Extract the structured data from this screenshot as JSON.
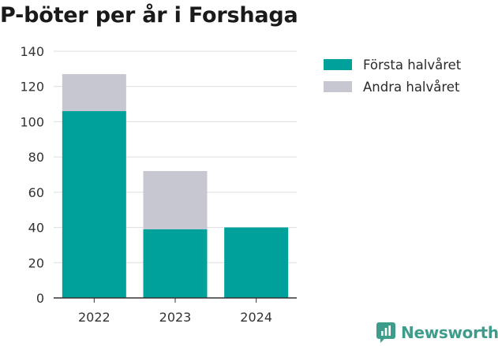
{
  "chart_data": {
    "type": "bar",
    "stacked": true,
    "title": "P-böter per år i Forshaga",
    "categories": [
      "2022",
      "2023",
      "2024"
    ],
    "series": [
      {
        "name": "Första halvåret",
        "color": "#00a19a",
        "values": [
          106,
          39,
          40
        ]
      },
      {
        "name": "Andra halvåret",
        "color": "#c7c7d1",
        "values": [
          21,
          33,
          0
        ]
      }
    ],
    "y_ticks": [
      "0",
      "20",
      "40",
      "60",
      "80",
      "100",
      "120",
      "140"
    ],
    "ylim": [
      0,
      140
    ],
    "grid": true,
    "legend_position": "top-right"
  },
  "brand": {
    "label": "Newsworthy",
    "color": "#3e9c8a",
    "icon": "newsworthy-logo-icon"
  }
}
